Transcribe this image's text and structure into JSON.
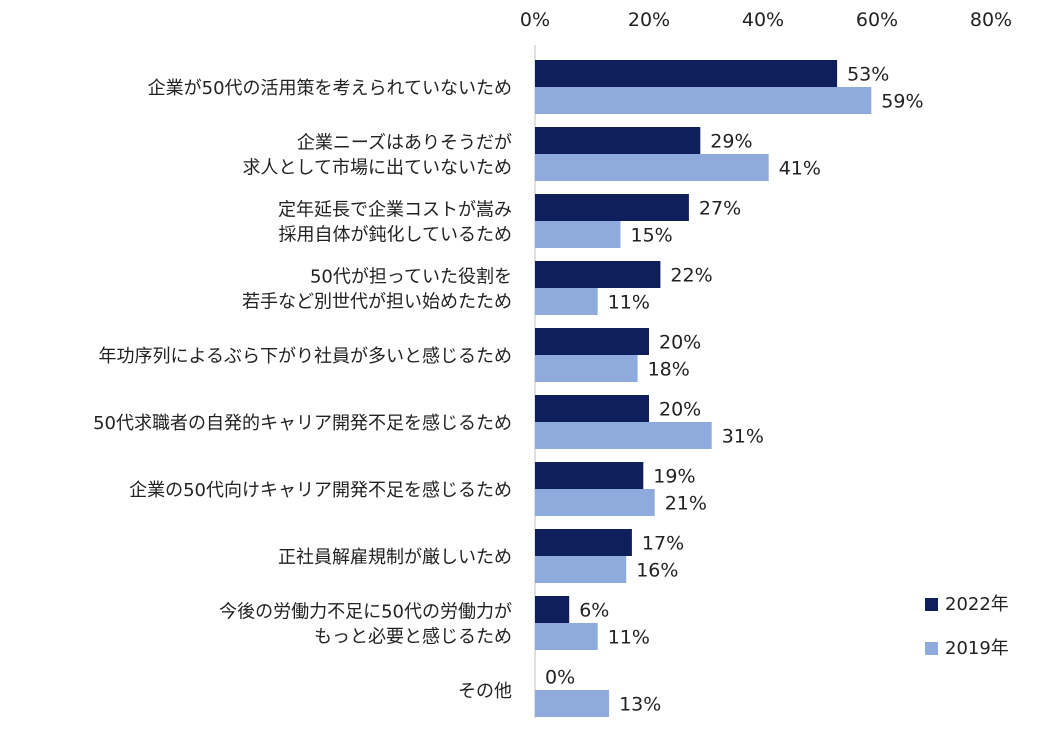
{
  "chart_data": {
    "type": "bar",
    "orientation": "horizontal",
    "categories": [
      [
        "企業が50代の活用策を考えられていないため"
      ],
      [
        "企業ニーズはありそうだが",
        "求人として市場に出ていないため"
      ],
      [
        "定年延長で企業コストが嵩み",
        "採用自体が鈍化しているため"
      ],
      [
        "50代が担っていた役割を",
        "若手など別世代が担い始めたため"
      ],
      [
        "年功序列によるぶら下がり社員が多いと感じるため"
      ],
      [
        "50代求職者の自発的キャリア開発不足を感じるため"
      ],
      [
        "企業の50代向けキャリア開発不足を感じるため"
      ],
      [
        "正社員解雇規制が厳しいため"
      ],
      [
        "今後の労働力不足に50代の労働力が",
        "もっと必要と感じるため"
      ],
      [
        "その他"
      ]
    ],
    "series": [
      {
        "name": "2022年",
        "color": "#0f1f5c",
        "values": [
          53,
          29,
          27,
          22,
          20,
          20,
          19,
          17,
          6,
          0
        ],
        "labels": [
          "53%",
          "29%",
          "27%",
          "22%",
          "20%",
          "20%",
          "19%",
          "17%",
          "6%",
          "0%"
        ]
      },
      {
        "name": "2019年",
        "color": "#8faadc",
        "values": [
          59,
          41,
          15,
          11,
          18,
          31,
          21,
          16,
          11,
          13
        ],
        "labels": [
          "59%",
          "41%",
          "15%",
          "11%",
          "18%",
          "31%",
          "21%",
          "16%",
          "11%",
          "13%"
        ]
      }
    ],
    "xlim": [
      0,
      80
    ],
    "xticks": [
      "0%",
      "20%",
      "40%",
      "60%",
      "80%"
    ],
    "xtick_values": [
      0,
      20,
      40,
      60,
      80
    ],
    "xaxis_position": "top",
    "grid": false,
    "legend_position": "right"
  }
}
